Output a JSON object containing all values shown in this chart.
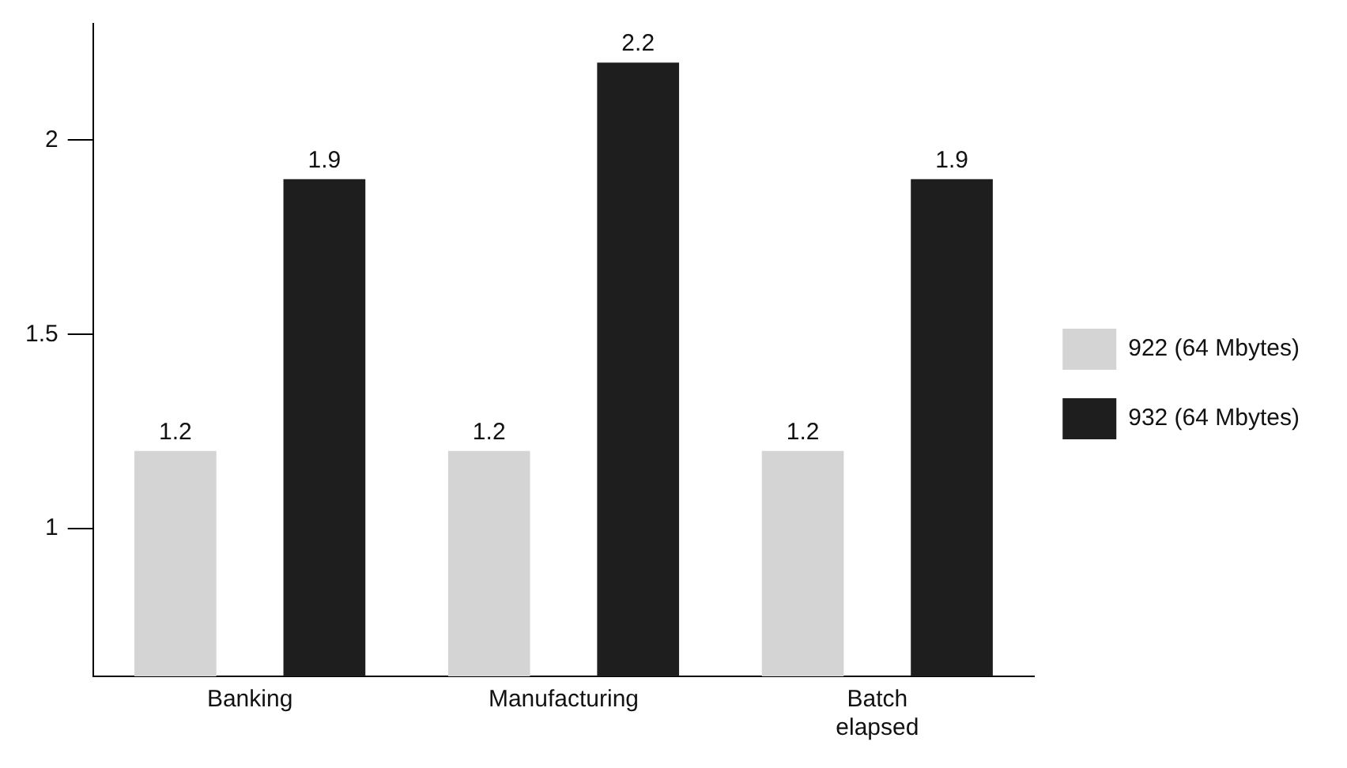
{
  "chart_data": {
    "type": "bar",
    "categories": [
      "Banking",
      "Manufacturing",
      "Batch elapsed"
    ],
    "series": [
      {
        "name": "922 (64 Mbytes)",
        "color": "#d4d4d4",
        "values": [
          1.2,
          1.2,
          1.2
        ]
      },
      {
        "name": "932 (64 Mbytes)",
        "color": "#1e1e1e",
        "values": [
          1.9,
          2.2,
          1.9
        ]
      }
    ],
    "ylim": [
      0.62,
      2.3
    ],
    "yticks": [
      1,
      1.5,
      2
    ],
    "grid": false,
    "legend": "right",
    "data_labels": true
  }
}
